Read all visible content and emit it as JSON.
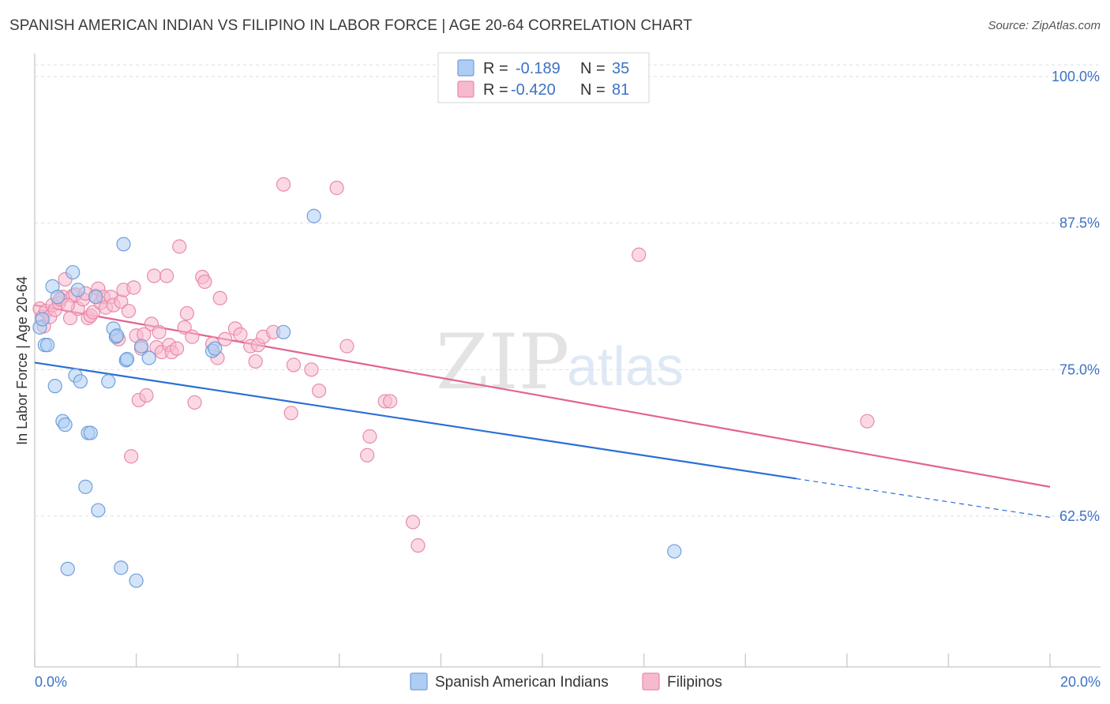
{
  "title": "SPANISH AMERICAN INDIAN VS FILIPINO IN LABOR FORCE | AGE 20-64 CORRELATION CHART",
  "source": "Source: ZipAtlas.com",
  "watermark": {
    "zip": "ZIP",
    "atlas": "atlas"
  },
  "colors": {
    "blue_fill": "#aecdf2",
    "blue_stroke": "#6f9fdb",
    "blue_line": "#2a6fd6",
    "pink_fill": "#f7b9cd",
    "pink_stroke": "#e88aa9",
    "pink_line": "#e2638f",
    "tick_text": "#3d72c6",
    "grid": "#dddddd"
  },
  "legend": {
    "rows": [
      {
        "r_label": "R =",
        "r_value": "-0.189",
        "n_label": "N =",
        "n_value": "35",
        "series": "blue"
      },
      {
        "r_label": "R =",
        "r_value": "-0.420",
        "n_label": "N =",
        "n_value": "81",
        "series": "pink"
      }
    ]
  },
  "chart_data": {
    "type": "scatter",
    "title": "SPANISH AMERICAN INDIAN VS FILIPINO IN LABOR FORCE | AGE 20-64 CORRELATION CHART",
    "xlabel": "",
    "ylabel": "In Labor Force | Age 20-64",
    "xlim": [
      0,
      20
    ],
    "ylim": [
      50,
      101
    ],
    "x_tick_labels": [
      {
        "value": 0,
        "label": "0.0%"
      },
      {
        "value": 20,
        "label": "20.0%"
      }
    ],
    "y_ticks": [
      {
        "value": 100,
        "label": "100.0%"
      },
      {
        "value": 87.5,
        "label": "87.5%"
      },
      {
        "value": 75,
        "label": "75.0%"
      },
      {
        "value": 62.5,
        "label": "62.5%"
      }
    ],
    "series": [
      {
        "name": "Spanish American Indians",
        "color": "blue",
        "points": [
          [
            0.1,
            78.6
          ],
          [
            0.15,
            79.3
          ],
          [
            0.2,
            77.1
          ],
          [
            0.25,
            77.1
          ],
          [
            0.35,
            82.1
          ],
          [
            0.4,
            73.6
          ],
          [
            0.45,
            81.2
          ],
          [
            0.55,
            70.6
          ],
          [
            0.6,
            70.3
          ],
          [
            0.65,
            58.0
          ],
          [
            0.75,
            83.3
          ],
          [
            0.8,
            74.5
          ],
          [
            0.85,
            81.8
          ],
          [
            0.9,
            74.0
          ],
          [
            1.0,
            65.0
          ],
          [
            1.05,
            69.6
          ],
          [
            1.1,
            69.6
          ],
          [
            1.2,
            81.2
          ],
          [
            1.25,
            63.0
          ],
          [
            1.45,
            74.0
          ],
          [
            1.55,
            78.5
          ],
          [
            1.6,
            77.8
          ],
          [
            1.7,
            58.1
          ],
          [
            1.75,
            85.7
          ],
          [
            1.8,
            75.8
          ],
          [
            1.82,
            75.9
          ],
          [
            2.0,
            57.0
          ],
          [
            2.1,
            77.0
          ],
          [
            2.25,
            76.0
          ],
          [
            3.5,
            76.6
          ],
          [
            3.55,
            76.8
          ],
          [
            4.9,
            78.2
          ],
          [
            5.5,
            88.1
          ],
          [
            12.6,
            59.5
          ],
          [
            1.62,
            77.9
          ]
        ]
      },
      {
        "name": "Filipinos",
        "color": "pink",
        "points": [
          [
            0.1,
            80.2
          ],
          [
            0.15,
            79.5
          ],
          [
            0.18,
            78.7
          ],
          [
            0.22,
            80.0
          ],
          [
            0.3,
            79.5
          ],
          [
            0.35,
            80.5
          ],
          [
            0.4,
            80.1
          ],
          [
            0.48,
            80.7
          ],
          [
            0.55,
            81.2
          ],
          [
            0.6,
            82.7
          ],
          [
            0.7,
            79.4
          ],
          [
            0.75,
            81.3
          ],
          [
            0.8,
            81.4
          ],
          [
            0.85,
            80.2
          ],
          [
            0.95,
            81.0
          ],
          [
            1.05,
            79.4
          ],
          [
            1.1,
            79.6
          ],
          [
            1.15,
            79.9
          ],
          [
            1.2,
            81.3
          ],
          [
            1.25,
            81.9
          ],
          [
            1.3,
            80.7
          ],
          [
            1.35,
            81.2
          ],
          [
            1.4,
            80.3
          ],
          [
            1.5,
            81.2
          ],
          [
            1.55,
            80.5
          ],
          [
            1.65,
            77.6
          ],
          [
            1.7,
            80.8
          ],
          [
            1.75,
            81.8
          ],
          [
            1.85,
            80.0
          ],
          [
            1.95,
            82.0
          ],
          [
            2.0,
            77.9
          ],
          [
            2.05,
            72.4
          ],
          [
            2.1,
            76.8
          ],
          [
            2.2,
            72.8
          ],
          [
            2.3,
            78.9
          ],
          [
            2.35,
            83.0
          ],
          [
            2.4,
            76.9
          ],
          [
            2.45,
            78.2
          ],
          [
            2.5,
            76.5
          ],
          [
            2.6,
            83.0
          ],
          [
            2.65,
            77.1
          ],
          [
            2.7,
            76.5
          ],
          [
            2.8,
            76.8
          ],
          [
            2.85,
            85.5
          ],
          [
            2.95,
            78.6
          ],
          [
            3.0,
            79.8
          ],
          [
            3.1,
            77.8
          ],
          [
            3.15,
            72.2
          ],
          [
            3.3,
            82.9
          ],
          [
            3.35,
            82.5
          ],
          [
            3.5,
            77.2
          ],
          [
            3.6,
            76.0
          ],
          [
            3.65,
            81.1
          ],
          [
            3.75,
            77.6
          ],
          [
            3.95,
            78.5
          ],
          [
            4.05,
            78.0
          ],
          [
            4.25,
            77.0
          ],
          [
            4.35,
            75.7
          ],
          [
            4.4,
            77.1
          ],
          [
            4.5,
            77.8
          ],
          [
            4.7,
            78.2
          ],
          [
            4.9,
            90.8
          ],
          [
            5.05,
            71.3
          ],
          [
            5.1,
            75.4
          ],
          [
            5.45,
            75.0
          ],
          [
            5.6,
            73.2
          ],
          [
            5.95,
            90.5
          ],
          [
            6.15,
            77.0
          ],
          [
            6.55,
            67.7
          ],
          [
            6.6,
            69.3
          ],
          [
            6.9,
            72.3
          ],
          [
            7.0,
            72.3
          ],
          [
            7.45,
            62.0
          ],
          [
            7.55,
            60.0
          ],
          [
            11.9,
            84.8
          ],
          [
            16.4,
            70.6
          ],
          [
            1.9,
            67.6
          ],
          [
            0.5,
            81.0
          ],
          [
            0.65,
            80.5
          ],
          [
            1.0,
            81.5
          ],
          [
            2.15,
            78.0
          ]
        ]
      }
    ],
    "trendlines": [
      {
        "series": "Spanish American Indians",
        "x_start": 0,
        "y_start": 75.6,
        "x_solid_end": 15.0,
        "y_solid_end": 65.7,
        "x_end": 20.0,
        "y_end": 62.4
      },
      {
        "series": "Filipinos",
        "x_start": 0,
        "y_start": 80.5,
        "x_end": 20.0,
        "y_end": 65.0
      }
    ],
    "legend_bottom": [
      "Spanish American Indians",
      "Filipinos"
    ],
    "grid": true
  }
}
